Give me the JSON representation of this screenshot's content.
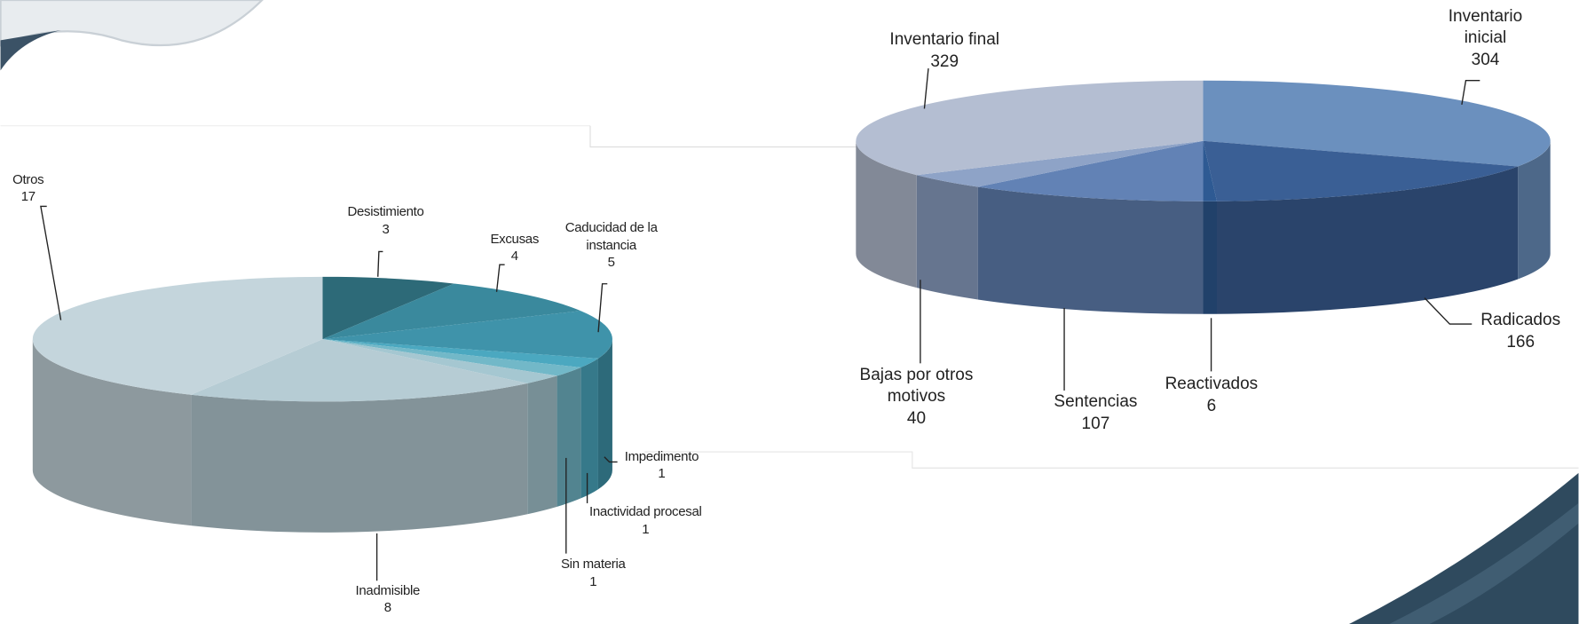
{
  "chart_data": [
    {
      "type": "pie",
      "categories": [
        "Inventario inicial",
        "Radicados",
        "Reactivados",
        "Sentencias",
        "Bajas por otros motivos",
        "Inventario final"
      ],
      "values": [
        304,
        166,
        6,
        107,
        40,
        329
      ],
      "colors": [
        "#6b90be",
        "#3a5f95",
        "#2e5a93",
        "#6282b5",
        "#8ea3c7",
        "#b4bed2"
      ]
    },
    {
      "type": "pie",
      "categories": [
        "Desistimiento",
        "Excusas",
        "Caducidad de la instancia",
        "Impedimento",
        "Inactividad procesal",
        "Sin materia",
        "Inadmisible",
        "Otros"
      ],
      "values": [
        3,
        4,
        5,
        1,
        1,
        1,
        8,
        17
      ],
      "colors": [
        "#2d6a78",
        "#3a899d",
        "#3f93aa",
        "#4ba8c0",
        "#72b8c8",
        "#a5c7d1",
        "#b6ccd4",
        "#c4d5dc"
      ]
    }
  ]
}
